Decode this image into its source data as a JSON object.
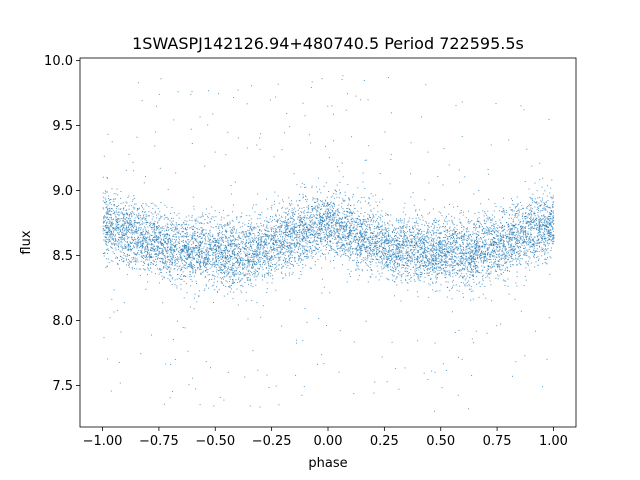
{
  "chart_data": {
    "type": "scatter",
    "title": "1SWASPJ142126.94+480740.5 Period 722595.5s",
    "xlabel": "phase",
    "ylabel": "flux",
    "xlim": [
      -1.1,
      1.1
    ],
    "ylim": [
      7.18,
      10.02
    ],
    "x_ticks": [
      -1.0,
      -0.75,
      -0.5,
      -0.25,
      0.0,
      0.25,
      0.5,
      0.75,
      1.0
    ],
    "x_tick_labels": [
      "−1.00",
      "−0.75",
      "−0.50",
      "−0.25",
      "0.00",
      "0.25",
      "0.50",
      "0.75",
      "1.00"
    ],
    "y_ticks": [
      7.5,
      8.0,
      8.5,
      9.0,
      9.5,
      10.0
    ],
    "y_tick_labels": [
      "7.5",
      "8.0",
      "8.5",
      "9.0",
      "9.5",
      "10.0"
    ],
    "grid": false,
    "marker_color": "#1f77b4",
    "series": [
      {
        "x_range": [
          -1.0,
          1.0
        ],
        "profile_phase": [
          0.0,
          0.1,
          0.2,
          0.3,
          0.4,
          0.5,
          0.6,
          0.7,
          0.8,
          0.9,
          1.0
        ],
        "profile_median_flux": [
          8.75,
          8.68,
          8.62,
          8.55,
          8.55,
          8.53,
          8.52,
          8.55,
          8.62,
          8.7,
          8.75
        ],
        "flux_spread_sd": 0.18,
        "flux_min": 7.3,
        "flux_max": 9.9
      }
    ]
  }
}
